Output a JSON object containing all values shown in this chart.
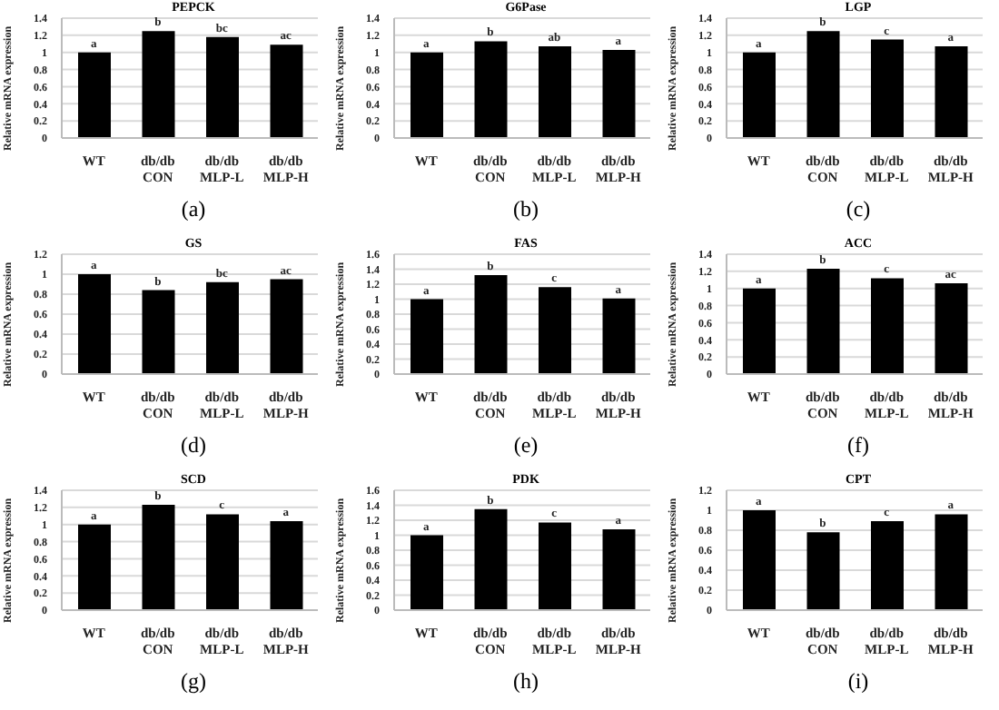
{
  "chart_data": [
    {
      "type": "bar",
      "title": "PEPCK",
      "ylabel": "Relative mRNA expression",
      "categories": [
        "WT",
        "db/db CON",
        "db/db MLP-L",
        "db/db MLP-H"
      ],
      "values": [
        1,
        1.25,
        1.18,
        1.09
      ],
      "color": "#000000",
      "ylim": [
        0,
        1.4
      ],
      "yticks": [
        0,
        0.2,
        0.4,
        0.6,
        0.8,
        1,
        1.2,
        1.4
      ],
      "grid": "y",
      "annotations": [
        {
          "text": "a",
          "x": "WT",
          "y": 1
        },
        {
          "text": "b",
          "x": "db/db CON",
          "y": 1.25
        },
        {
          "text": "bc",
          "x": "db/db MLP-L",
          "y": 1.18
        },
        {
          "text": "ac",
          "x": "db/db MLP-H",
          "y": 1.09
        },
        "(a)"
      ]
    },
    {
      "type": "bar",
      "title": "G6Pase",
      "ylabel": "Relative mRNA expression",
      "categories": [
        "WT",
        "db/db CON",
        "db/db MLP-L",
        "db/db MLP-H"
      ],
      "values": [
        1,
        1.13,
        1.07,
        1.03
      ],
      "color": "#000000",
      "ylim": [
        0,
        1.4
      ],
      "yticks": [
        0,
        0.2,
        0.4,
        0.6,
        0.8,
        1,
        1.2,
        1.4
      ],
      "grid": "y",
      "annotations": [
        {
          "text": "a",
          "x": "WT",
          "y": 1
        },
        {
          "text": "b",
          "x": "db/db CON",
          "y": 1.13
        },
        {
          "text": "ab",
          "x": "db/db MLP-L",
          "y": 1.07
        },
        {
          "text": "a",
          "x": "db/db MLP-H",
          "y": 1.03
        },
        "(b)"
      ]
    },
    {
      "type": "bar",
      "title": "LGP",
      "ylabel": "Relative mRNA expression",
      "categories": [
        "WT",
        "db/db CON",
        "db/db MLP-L",
        "db/db MLP-H"
      ],
      "values": [
        1,
        1.25,
        1.15,
        1.07
      ],
      "color": "#000000",
      "ylim": [
        0,
        1.4
      ],
      "yticks": [
        0,
        0.2,
        0.4,
        0.6,
        0.8,
        1,
        1.2,
        1.4
      ],
      "grid": "y",
      "annotations": [
        {
          "text": "a",
          "x": "WT",
          "y": 1
        },
        {
          "text": "b",
          "x": "db/db CON",
          "y": 1.25
        },
        {
          "text": "c",
          "x": "db/db MLP-L",
          "y": 1.15
        },
        {
          "text": "a",
          "x": "db/db MLP-H",
          "y": 1.07
        },
        "(c)"
      ]
    },
    {
      "type": "bar",
      "title": "GS",
      "ylabel": "Relative mRNA expression",
      "categories": [
        "WT",
        "db/db CON",
        "db/db MLP-L",
        "db/db MLP-H"
      ],
      "values": [
        1,
        0.84,
        0.92,
        0.95
      ],
      "color": "#000000",
      "ylim": [
        0,
        1.2
      ],
      "yticks": [
        0,
        0.2,
        0.4,
        0.6,
        0.8,
        1,
        1.2
      ],
      "grid": "y",
      "annotations": [
        {
          "text": "a",
          "x": "WT",
          "y": 1
        },
        {
          "text": "b",
          "x": "db/db CON",
          "y": 0.84
        },
        {
          "text": "bc",
          "x": "db/db MLP-L",
          "y": 0.92
        },
        {
          "text": "ac",
          "x": "db/db MLP-H",
          "y": 0.95
        },
        "(d)"
      ]
    },
    {
      "type": "bar",
      "title": "FAS",
      "ylabel": "Relative mRNA expression",
      "categories": [
        "WT",
        "db/db CON",
        "db/db MLP-L",
        "db/db MLP-H"
      ],
      "values": [
        1,
        1.32,
        1.16,
        1.01
      ],
      "color": "#000000",
      "ylim": [
        0,
        1.6
      ],
      "yticks": [
        0,
        0.2,
        0.4,
        0.6,
        0.8,
        1,
        1.2,
        1.4,
        1.6
      ],
      "grid": "y",
      "annotations": [
        {
          "text": "a",
          "x": "WT",
          "y": 1
        },
        {
          "text": "b",
          "x": "db/db CON",
          "y": 1.32
        },
        {
          "text": "c",
          "x": "db/db MLP-L",
          "y": 1.16
        },
        {
          "text": "a",
          "x": "db/db MLP-H",
          "y": 1.01
        },
        "(e)"
      ]
    },
    {
      "type": "bar",
      "title": "ACC",
      "ylabel": "Relative mRNA expression",
      "categories": [
        "WT",
        "db/db CON",
        "db/db MLP-L",
        "db/db MLP-H"
      ],
      "values": [
        1,
        1.23,
        1.12,
        1.06
      ],
      "color": "#000000",
      "ylim": [
        0,
        1.4
      ],
      "yticks": [
        0,
        0.2,
        0.4,
        0.6,
        0.8,
        1,
        1.2,
        1.4
      ],
      "grid": "y",
      "annotations": [
        {
          "text": "a",
          "x": "WT",
          "y": 1
        },
        {
          "text": "b",
          "x": "db/db CON",
          "y": 1.23
        },
        {
          "text": "c",
          "x": "db/db MLP-L",
          "y": 1.12
        },
        {
          "text": "ac",
          "x": "db/db MLP-H",
          "y": 1.06
        },
        "(f)"
      ]
    },
    {
      "type": "bar",
      "title": "SCD",
      "ylabel": "Relative mRNA expression",
      "categories": [
        "WT",
        "db/db CON",
        "db/db MLP-L",
        "db/db MLP-H"
      ],
      "values": [
        1,
        1.23,
        1.12,
        1.04
      ],
      "color": "#000000",
      "ylim": [
        0,
        1.4
      ],
      "yticks": [
        0,
        0.2,
        0.4,
        0.6,
        0.8,
        1,
        1.2,
        1.4
      ],
      "grid": "y",
      "annotations": [
        {
          "text": "a",
          "x": "WT",
          "y": 1
        },
        {
          "text": "b",
          "x": "db/db CON",
          "y": 1.23
        },
        {
          "text": "c",
          "x": "db/db MLP-L",
          "y": 1.12
        },
        {
          "text": "a",
          "x": "db/db MLP-H",
          "y": 1.04
        },
        "(g)"
      ]
    },
    {
      "type": "bar",
      "title": "PDK",
      "ylabel": "Relative mRNA expression",
      "categories": [
        "WT",
        "db/db CON",
        "db/db MLP-L",
        "db/db MLP-H"
      ],
      "values": [
        1,
        1.35,
        1.17,
        1.08
      ],
      "color": "#000000",
      "ylim": [
        0,
        1.6
      ],
      "yticks": [
        0,
        0.2,
        0.4,
        0.6,
        0.8,
        1,
        1.2,
        1.4,
        1.6
      ],
      "grid": "y",
      "annotations": [
        {
          "text": "a",
          "x": "WT",
          "y": 1
        },
        {
          "text": "b",
          "x": "db/db CON",
          "y": 1.35
        },
        {
          "text": "c",
          "x": "db/db MLP-L",
          "y": 1.17
        },
        {
          "text": "a",
          "x": "db/db MLP-H",
          "y": 1.08
        },
        "(h)"
      ]
    },
    {
      "type": "bar",
      "title": "CPT",
      "ylabel": "Relative mRNA expression",
      "categories": [
        "WT",
        "db/db CON",
        "db/db MLP-L",
        "db/db MLP-H"
      ],
      "values": [
        1,
        0.78,
        0.89,
        0.96
      ],
      "color": "#000000",
      "ylim": [
        0,
        1.2
      ],
      "yticks": [
        0,
        0.2,
        0.4,
        0.6,
        0.8,
        1,
        1.2
      ],
      "grid": "y",
      "annotations": [
        {
          "text": "a",
          "x": "WT",
          "y": 1
        },
        {
          "text": "b",
          "x": "db/db CON",
          "y": 0.78
        },
        {
          "text": "c",
          "x": "db/db MLP-L",
          "y": 0.89
        },
        {
          "text": "a",
          "x": "db/db MLP-H",
          "y": 0.96
        },
        "(i)"
      ]
    }
  ]
}
